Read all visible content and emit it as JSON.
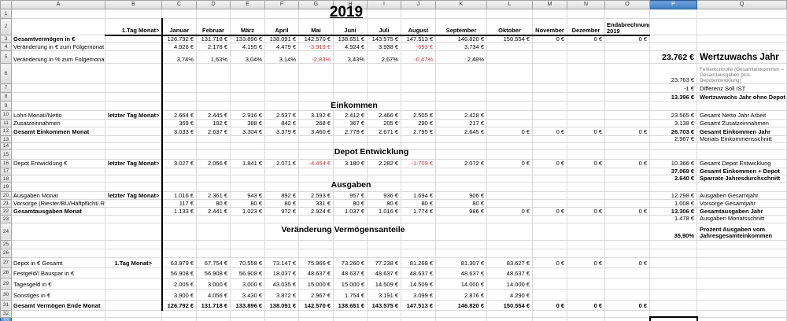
{
  "titles": {
    "year": "2019",
    "einkommen": "Einkommen",
    "depot": "Depot Entwicklung",
    "ausgaben": "Ausgaben",
    "veraenderung": "Veränderung Vermögensanteile"
  },
  "sheet": {
    "selected_column": "P",
    "selected_row": 33,
    "selected_cell": "P33",
    "row_count": 33,
    "columns": [
      "A",
      "B",
      "C",
      "D",
      "E",
      "F",
      "G",
      "H",
      "I",
      "J",
      "K",
      "L",
      "M",
      "N",
      "O",
      "P",
      "Q"
    ],
    "months": [
      "Januar",
      "Februar",
      "März",
      "April",
      "Mai",
      "Juni",
      "Juli",
      "August",
      "September",
      "Oktober",
      "November",
      "Dezember",
      "Endabrechnung 2019"
    ],
    "rows": {
      "r2": {
        "b": "1.Tag Monat>"
      },
      "r3": {
        "a": "Gesamtvermögen in €",
        "a_bold": true,
        "vals": [
          "126.792 €",
          "131.718 €",
          "133.896 €",
          "138.091 €",
          "142.570 €",
          "138.651 €",
          "143.575 €",
          "147.513 €",
          "146.820 €",
          "150.554 €",
          "0 €",
          "0 €",
          "0 €"
        ]
      },
      "r4": {
        "a": "Veränderung in € zum Folgemonat",
        "red": [
          4,
          7
        ],
        "vals": [
          "4.926 €",
          "2.178 €",
          "4.195 €",
          "4.479 €",
          "-3.919 €",
          "4.924 €",
          "3.938 €",
          "-693 €",
          "3.734 €",
          "",
          "",
          "",
          ""
        ]
      },
      "r5": {
        "a": "Veränderung in % zum Folgemonat",
        "red": [
          4,
          7
        ],
        "vals": [
          "3,74%",
          "1,63%",
          "3,04%",
          "3,14%",
          "-2,83%",
          "3,43%",
          "2,67%",
          "-0,47%",
          "2,48%",
          "",
          "",
          "",
          ""
        ],
        "p": "23.762 €",
        "p_class": "big",
        "q": "Wertzuwachs Jahr",
        "q_class": "big"
      },
      "r6": {
        "p": "23.763 €",
        "q": "Fehlerkontrolle (Gesamteinkommen – Gesamtausgaben plus Depotentwicklung)",
        "q_class": "small"
      },
      "r7": {
        "p": "-1 €",
        "p_class": "red",
        "q": "Differenz Soll IST"
      },
      "r8": {
        "p": "13.396 €",
        "p_class": "bold",
        "q": "Wertzuwachs Jahr ohne Depot",
        "q_class": "bold"
      },
      "r10": {
        "a": "Lohn Monat//Netto",
        "b": "letzter Tag Monat>",
        "vals": [
          "2.664 €",
          "2.445 €",
          "2.916 €",
          "2.537 €",
          "3.192 €",
          "2.412 €",
          "2.466 €",
          "2.505 €",
          "2.428 €",
          "",
          "",
          "",
          ""
        ],
        "p": "23.565 €",
        "q": "Gesamt Netto Jahr Arbeit"
      },
      "r11": {
        "a": "Zusatzeinnahmen",
        "vals": [
          "369 €",
          "192 €",
          "388 €",
          "842 €",
          "268 €",
          "367 €",
          "205 €",
          "290 €",
          "217 €",
          "",
          "",
          "",
          ""
        ],
        "p": "3.138 €",
        "q": "Gesamt Zusatzeinnahmen"
      },
      "r12": {
        "a": "Gesamt Einkommen Monat",
        "a_bold": true,
        "vals": [
          "3.033 €",
          "2.637 €",
          "3.304 €",
          "3.379 €",
          "3.460 €",
          "2.779 €",
          "2.671 €",
          "2.795 €",
          "2.645 €",
          "0 €",
          "0 €",
          "0 €",
          "0 €"
        ],
        "p": "26.703 €",
        "p_class": "bold",
        "q": "Gesamt Einkommen Jahr",
        "q_class": "bold"
      },
      "r13": {
        "p": "2.967 €",
        "q": "Monats Einkommensschnitt"
      },
      "r16": {
        "a": "Depot Entwicklung €",
        "b": "letzter Tag Monat>",
        "red": [
          4,
          7
        ],
        "vals": [
          "3.027 €",
          "2.056 €",
          "1.841 €",
          "2.071 €",
          "-4.454 €",
          "3.180 €",
          "2.282 €",
          "-1.709 €",
          "2.072 €",
          "0 €",
          "0 €",
          "0 €",
          "0 €"
        ],
        "p": "10.366 €",
        "q": "Gesamt Depot Entwicklung"
      },
      "r17": {
        "p": "37.069 €",
        "p_class": "bold",
        "q": "Gesamt Einkommen + Depot",
        "q_class": "bold"
      },
      "r18": {
        "p": "2.640 €",
        "p_class": "bold",
        "q": "Sparrate Jahresdurchschnitt",
        "q_class": "bold"
      },
      "r20": {
        "a": "Ausgaben Monat",
        "b": "letzter Tag Monat>",
        "vals": [
          "1.016 €",
          "2.361 €",
          "943 €",
          "892 €",
          "2.593 €",
          "957 €",
          "936 €",
          "1.694 €",
          "906 €",
          "",
          "",
          "",
          ""
        ],
        "p": "12.298 €",
        "q": "Ausgaben Gesamtjahr"
      },
      "r21": {
        "a": "Vorsorge (Riester/BU/Haftpflicht/.RV",
        "vals": [
          "117 €",
          "80 €",
          "80 €",
          "80 €",
          "331 €",
          "80 €",
          "80 €",
          "80 €",
          "80 €",
          "",
          "",
          "",
          ""
        ],
        "p": "1.008 €",
        "q": "Vorsorge Gesamtjahr"
      },
      "r22": {
        "a": "Gesamtausgaben Monat",
        "a_bold": true,
        "vals": [
          "1.133 €",
          "2.441 €",
          "1.023 €",
          "972 €",
          "2.924 €",
          "1.037 €",
          "1.016 €",
          "1.774 €",
          "986 €",
          "0 €",
          "0 €",
          "0 €",
          "0 €"
        ],
        "p": "13.306 €",
        "p_class": "bold",
        "q": "Gesamtausgaben Jahr",
        "q_class": "bold"
      },
      "r23": {
        "p": "1.478 €",
        "q": "Ausgaben Monatsschnitt"
      },
      "r24": {
        "p": "35,90%",
        "p_class": "bold",
        "q": "Prozent Ausgaben vom Jahresgesamteinkommen",
        "q_class": "bold"
      },
      "r27": {
        "a": "Depot in € Gesamt",
        "b": "1.Tag Monat>",
        "b_center": true,
        "vals": [
          "63.979 €",
          "67.754 €",
          "70.558 €",
          "73.147 €",
          "75.966 €",
          "73.260 €",
          "77.238 €",
          "81.268 €",
          "81.307 €",
          "83.627 €",
          "0 €",
          "0 €",
          "0 €"
        ]
      },
      "r28": {
        "a": "Festgeld// Bauspar in €",
        "vals": [
          "56.908 €",
          "56.908 €",
          "56.908 €",
          "18.037 €",
          "48.637 €",
          "48.637 €",
          "48.637 €",
          "48.637 €",
          "48.637 €",
          "48.637 €",
          "",
          "",
          ""
        ]
      },
      "r29": {
        "a": "Tagesgeld in €",
        "vals": [
          "2.005 €",
          "3.000 €",
          "3.000 €",
          "43.035 €",
          "15.000 €",
          "15.000 €",
          "14.509 €",
          "14.509 €",
          "14.000 €",
          "14.000 €",
          "",
          "",
          ""
        ]
      },
      "r30": {
        "a": "Sonstiges in €",
        "vals": [
          "3.900 €",
          "4.056 €",
          "3.430 €",
          "3.872 €",
          "2.967 €",
          "1.754 €",
          "3.191 €",
          "3.099 €",
          "2.876 €",
          "4.290 €",
          "",
          "",
          ""
        ]
      },
      "r31": {
        "a": "Gesamt Vermögen Ende Monat",
        "a_bold": true,
        "vals_bold": true,
        "vals": [
          "126.792 €",
          "131.718 €",
          "133.896 €",
          "138.091 €",
          "142.570 €",
          "138.651 €",
          "143.575 €",
          "147.513 €",
          "146.820 €",
          "150.554 €",
          "0 €",
          "0 €",
          "0 €"
        ]
      }
    }
  }
}
